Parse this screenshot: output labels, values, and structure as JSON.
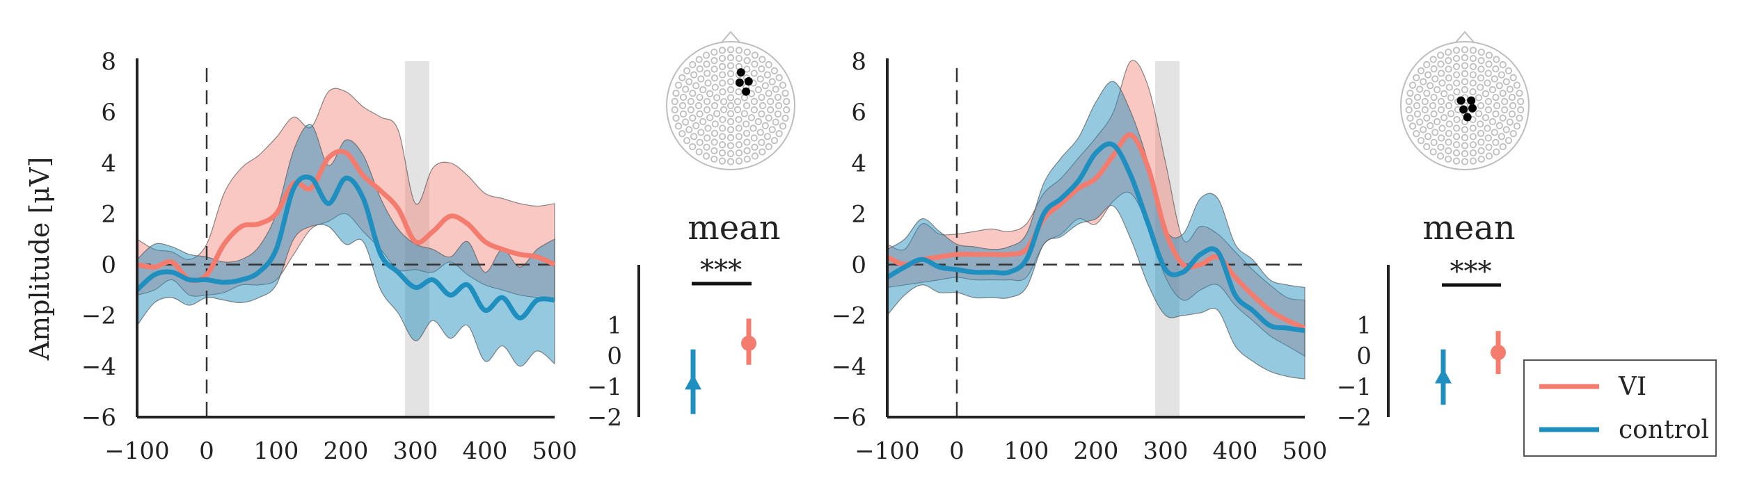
{
  "figure": {
    "ylabel": "Amplitude [μV]",
    "legend": {
      "placement": "bottom-right"
    },
    "colors": {
      "VI": "#f47c6e",
      "control": "#1f8fbf",
      "highlight": "#cccccc",
      "electrode": "#bdbdbd",
      "electrode_active": "#000000"
    }
  },
  "chart_data": [
    {
      "type": "line",
      "panel": "left",
      "xlabel": "",
      "ylabel": "Amplitude [μV]",
      "xlim": [
        -100,
        500
      ],
      "ylim": [
        -6,
        8
      ],
      "xticks": [
        -100,
        0,
        100,
        200,
        300,
        400,
        500
      ],
      "yticks": [
        -6,
        -4,
        -2,
        0,
        2,
        4,
        6,
        8
      ],
      "highlight_window": [
        285,
        320
      ],
      "x": [
        -100,
        -75,
        -50,
        -25,
        0,
        25,
        50,
        75,
        100,
        125,
        150,
        175,
        200,
        225,
        250,
        275,
        300,
        325,
        350,
        375,
        400,
        425,
        450,
        475,
        500
      ],
      "series": [
        {
          "name": "VI",
          "values": [
            0.0,
            -0.1,
            0.1,
            -0.6,
            -0.4,
            0.8,
            1.5,
            1.6,
            2.0,
            3.2,
            3.0,
            4.2,
            4.4,
            3.5,
            2.9,
            2.2,
            0.9,
            1.3,
            1.9,
            1.6,
            0.9,
            0.6,
            0.4,
            0.3,
            0.0
          ],
          "upper": [
            1.0,
            0.6,
            0.5,
            0.2,
            0.8,
            2.8,
            3.8,
            4.3,
            5.0,
            5.8,
            5.4,
            6.8,
            6.8,
            6.2,
            5.8,
            5.3,
            2.4,
            3.8,
            4.0,
            3.5,
            2.8,
            2.6,
            2.4,
            2.3,
            2.4
          ],
          "lower": [
            -1.2,
            -1.0,
            -0.6,
            -1.2,
            -1.2,
            -1.1,
            -0.8,
            -0.8,
            -0.6,
            0.4,
            1.4,
            1.7,
            2.0,
            1.3,
            0.6,
            -0.2,
            -0.2,
            -0.3,
            0.1,
            -0.4,
            -0.8,
            -1.0,
            -1.2,
            -1.3,
            -1.4
          ]
        },
        {
          "name": "control",
          "values": [
            -1.0,
            -0.4,
            -0.3,
            -0.6,
            -0.6,
            -0.7,
            -0.6,
            -0.3,
            0.6,
            3.0,
            3.4,
            2.4,
            3.4,
            2.6,
            0.4,
            -0.3,
            -0.9,
            -0.6,
            -1.2,
            -0.8,
            -1.8,
            -1.3,
            -2.1,
            -1.4,
            -1.4
          ],
          "upper": [
            0.2,
            0.8,
            0.7,
            0.4,
            0.3,
            0.1,
            0.2,
            0.7,
            2.0,
            4.5,
            5.5,
            3.9,
            4.9,
            4.3,
            2.6,
            1.4,
            0.8,
            0.6,
            0.3,
            0.9,
            -0.3,
            0.6,
            -0.1,
            0.6,
            1.0
          ],
          "lower": [
            -2.4,
            -1.5,
            -1.3,
            -1.6,
            -1.3,
            -1.4,
            -1.5,
            -1.3,
            -0.8,
            1.0,
            1.5,
            1.5,
            0.8,
            0.9,
            -1.0,
            -1.9,
            -3.0,
            -2.2,
            -2.9,
            -2.4,
            -3.8,
            -3.2,
            -4.0,
            -3.4,
            -3.9
          ]
        }
      ]
    },
    {
      "type": "line",
      "panel": "right",
      "xlabel": "",
      "ylabel": "",
      "xlim": [
        -100,
        500
      ],
      "ylim": [
        -6,
        8
      ],
      "xticks": [
        -100,
        0,
        100,
        200,
        300,
        400,
        500
      ],
      "yticks": [
        -6,
        -4,
        -2,
        0,
        2,
        4,
        6,
        8
      ],
      "highlight_window": [
        285,
        320
      ],
      "x": [
        -100,
        -75,
        -50,
        -25,
        0,
        25,
        50,
        75,
        100,
        125,
        150,
        175,
        200,
        225,
        250,
        275,
        300,
        325,
        350,
        375,
        400,
        425,
        450,
        475,
        500
      ],
      "series": [
        {
          "name": "VI",
          "values": [
            0.3,
            0.0,
            0.2,
            0.3,
            0.4,
            0.4,
            0.4,
            0.4,
            0.6,
            1.8,
            2.4,
            3.0,
            3.4,
            4.3,
            5.1,
            3.8,
            1.3,
            0.0,
            0.0,
            0.3,
            -0.5,
            -1.2,
            -1.8,
            -2.2,
            -2.5
          ],
          "upper": [
            0.8,
            0.6,
            1.6,
            1.2,
            1.2,
            1.3,
            1.4,
            1.3,
            1.6,
            2.8,
            3.4,
            4.2,
            5.0,
            6.0,
            8.0,
            7.0,
            4.0,
            1.0,
            1.5,
            1.2,
            0.5,
            -0.2,
            -0.8,
            -1.3,
            -1.4
          ],
          "lower": [
            -0.9,
            -0.8,
            -0.7,
            -0.6,
            -0.5,
            -0.6,
            -0.6,
            -0.6,
            -0.5,
            0.8,
            1.2,
            1.8,
            1.6,
            2.5,
            2.8,
            1.5,
            -0.5,
            -1.4,
            -1.0,
            -0.8,
            -1.6,
            -2.2,
            -2.8,
            -3.2,
            -3.6
          ]
        },
        {
          "name": "control",
          "values": [
            -0.5,
            -0.1,
            0.2,
            -0.1,
            -0.2,
            -0.3,
            -0.3,
            -0.3,
            0.2,
            2.0,
            2.6,
            3.3,
            4.4,
            4.7,
            3.5,
            1.6,
            -0.2,
            -0.3,
            0.4,
            0.5,
            -1.2,
            -1.8,
            -2.4,
            -2.5,
            -2.6
          ],
          "upper": [
            0.6,
            1.0,
            1.8,
            1.3,
            0.8,
            0.7,
            0.6,
            0.7,
            1.2,
            3.2,
            4.2,
            5.0,
            6.4,
            7.2,
            6.0,
            4.0,
            1.4,
            1.2,
            2.6,
            2.6,
            0.8,
            0.2,
            -0.6,
            -0.8,
            -0.9
          ],
          "lower": [
            -2.0,
            -1.2,
            -0.8,
            -1.1,
            -1.1,
            -1.3,
            -1.3,
            -1.3,
            -0.9,
            0.8,
            1.1,
            1.6,
            1.8,
            2.3,
            1.0,
            -0.8,
            -2.0,
            -2.0,
            -1.9,
            -1.8,
            -3.2,
            -3.8,
            -4.2,
            -4.4,
            -4.5
          ]
        }
      ]
    },
    {
      "type": "scatter",
      "panel": "left-inset",
      "title": "mean",
      "ylim": [
        -2,
        2
      ],
      "yticks": [
        -2,
        -1,
        0,
        1
      ],
      "annotation": "***",
      "series": [
        {
          "name": "control",
          "marker": "triangle",
          "value": -0.9,
          "ci": [
            -1.9,
            0.2
          ]
        },
        {
          "name": "VI",
          "marker": "circle",
          "value": 0.4,
          "ci": [
            -0.3,
            1.2
          ]
        }
      ]
    },
    {
      "type": "scatter",
      "panel": "right-inset",
      "title": "mean",
      "ylim": [
        -2,
        2
      ],
      "yticks": [
        -2,
        -1,
        0,
        1
      ],
      "annotation": "***",
      "series": [
        {
          "name": "control",
          "marker": "triangle",
          "value": -0.7,
          "ci": [
            -1.6,
            0.2
          ]
        },
        {
          "name": "VI",
          "marker": "circle",
          "value": 0.1,
          "ci": [
            -0.6,
            0.8
          ]
        }
      ]
    }
  ]
}
